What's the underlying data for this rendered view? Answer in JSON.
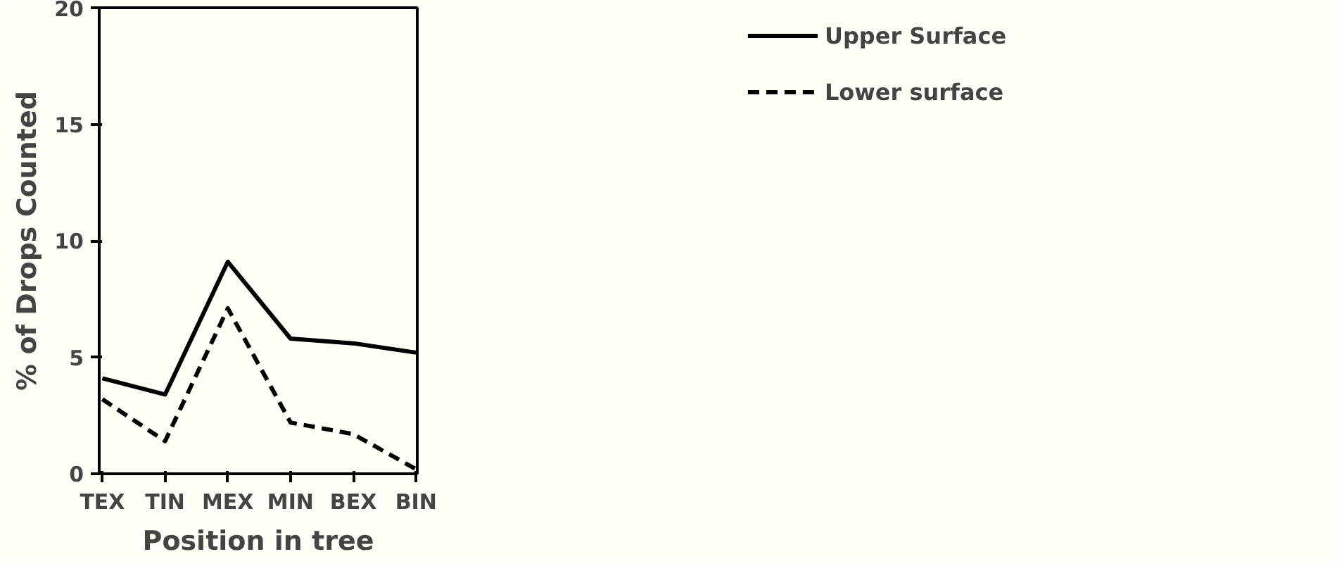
{
  "chart_data": {
    "type": "line",
    "xlabel": "Position in tree",
    "ylabel": "% of Drops Counted",
    "categories": [
      "TEX",
      "TIN",
      "MEX",
      "MIN",
      "BEX",
      "BIN"
    ],
    "series": [
      {
        "name": "Upper Surface",
        "color": "#000000",
        "line_style": "solid",
        "values": [
          4.1,
          3.4,
          9.1,
          5.8,
          5.6,
          5.2
        ]
      },
      {
        "name": "Lower surface",
        "color": "#000000",
        "line_style": "dashed",
        "values": [
          3.2,
          1.4,
          7.1,
          2.2,
          1.7,
          0.2
        ]
      }
    ],
    "ylim": [
      0,
      20
    ],
    "yticks": [
      0,
      5,
      10,
      15,
      20
    ],
    "grid": false,
    "legend": "top right",
    "marker": "none"
  }
}
